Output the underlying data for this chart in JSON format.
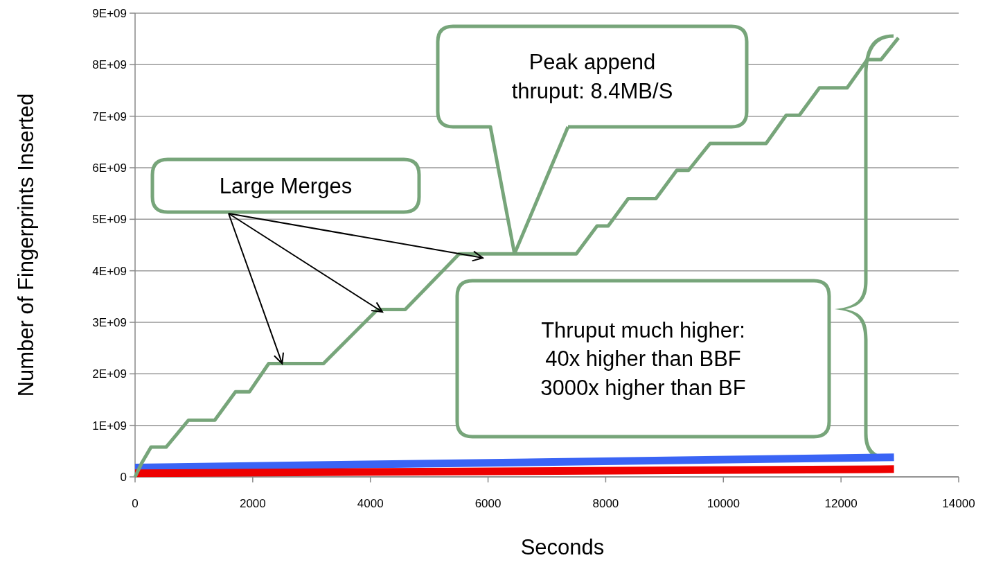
{
  "chart_data": {
    "type": "line",
    "xlabel": "Seconds",
    "ylabel": "Number of Fingerprints Inserted",
    "xlim": [
      0,
      14000
    ],
    "xticks": [
      0,
      2000,
      4000,
      6000,
      8000,
      10000,
      12000,
      14000
    ],
    "ylim": [
      0,
      9000000000
    ],
    "yticks": [
      0,
      {
        "value": 1000000000,
        "label": "1E+09"
      },
      {
        "value": 2000000000,
        "label": "2E+09"
      },
      {
        "value": 3000000000,
        "label": "3E+09"
      },
      {
        "value": 4000000000,
        "label": "4E+09"
      },
      {
        "value": 5000000000,
        "label": "5E+09"
      },
      {
        "value": 6000000000,
        "label": "6E+09"
      },
      {
        "value": 7000000000,
        "label": "7E+09"
      },
      {
        "value": 8000000000,
        "label": "8E+09"
      },
      {
        "value": 9000000000,
        "label": "9E+09"
      }
    ],
    "grid": "y",
    "series": [
      {
        "color": "#3a64f5",
        "x": [
          0,
          12900
        ],
        "values": [
          180000000,
          380000000
        ]
      },
      {
        "color": "#ee0000",
        "x": [
          0,
          12900
        ],
        "values": [
          70000000,
          150000000
        ]
      },
      {
        "color": "#77a57a",
        "x": [
          0,
          118,
          271,
          530,
          907,
          1354,
          1707,
          1943,
          2272,
          3203,
          4121,
          4592,
          5510,
          7500,
          7853,
          8042,
          8383,
          8854,
          9208,
          9408,
          9773,
          10726,
          11068,
          11292,
          11633,
          12104,
          12446,
          12681,
          12976
        ],
        "values": [
          0,
          280000000,
          580000000,
          580000000,
          1100000000,
          1100000000,
          1650000000,
          1650000000,
          2200000000,
          2200000000,
          3250000000,
          3250000000,
          4330000000,
          4330000000,
          4870000000,
          4870000000,
          5400000000,
          5400000000,
          5950000000,
          5950000000,
          6470000000,
          6470000000,
          7020000000,
          7020000000,
          7550000000,
          7550000000,
          8100000000,
          8100000000,
          8520000000
        ]
      }
    ],
    "annotations": [
      {
        "text": "Large Merges",
        "x": 2500,
        "y": 2200000000
      },
      {
        "text": "Peak append\nthruput: 8.4MB/S",
        "x": 6450,
        "y": 4330000000
      },
      "Thruput much higher:\n40x higher than BBF\n3000x higher than BF"
    ]
  }
}
